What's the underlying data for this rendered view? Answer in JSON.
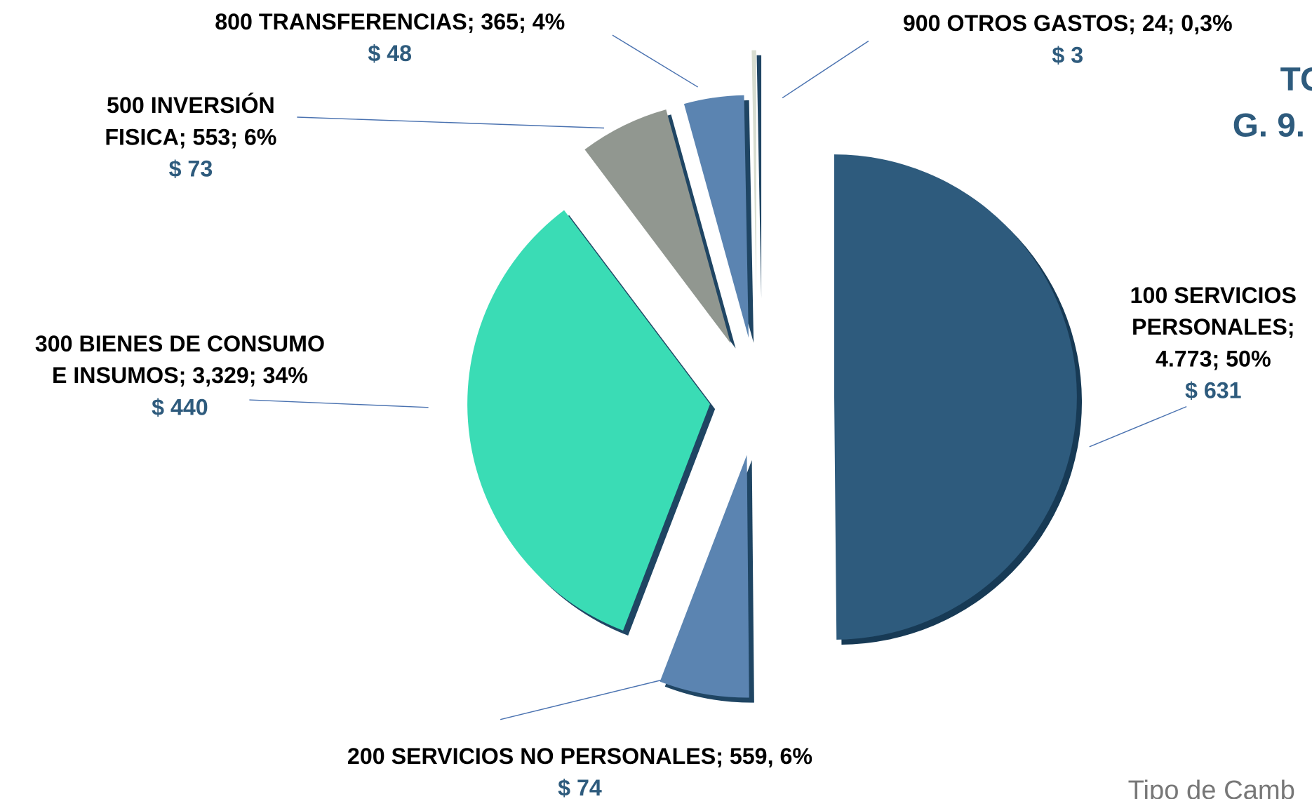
{
  "chart_data": {
    "type": "pie",
    "categories": [
      "100 SERVICIOS PERSONALES",
      "200 SERVICIOS NO PERSONALES",
      "300 BIENES DE CONSUMO E INSUMOS",
      "500 INVERSIÓN FISICA",
      "800 TRANSFERENCIAS",
      "900 OTROS GASTOS"
    ],
    "values": [
      50,
      6,
      34,
      6,
      4,
      0.3
    ],
    "colors": [
      "#2e5b7d",
      "#5b84b1",
      "#3adcb5",
      "#919790",
      "#5b84b1",
      "#d8ddd0"
    ],
    "value_labels": [
      [
        "100 SERVICIOS",
        "PERSONALES;",
        "4.773; 50%"
      ],
      [
        "200 SERVICIOS NO PERSONALES; 559, 6%"
      ],
      [
        "300 BIENES DE CONSUMO",
        "E INSUMOS; 3,329; 34%"
      ],
      [
        "500 INVERSIÓN",
        "FISICA; 553; 6%"
      ],
      [
        "800 TRANSFERENCIAS; 365; 4%"
      ],
      [
        "900 OTROS GASTOS; 24; 0,3%"
      ]
    ],
    "amount_labels": [
      "$  631",
      "$  74",
      "$  440",
      "$  73",
      "$  48",
      "$  3"
    ],
    "annotations": [
      "TO",
      "G. 9.",
      "Tipo de Camb"
    ]
  }
}
